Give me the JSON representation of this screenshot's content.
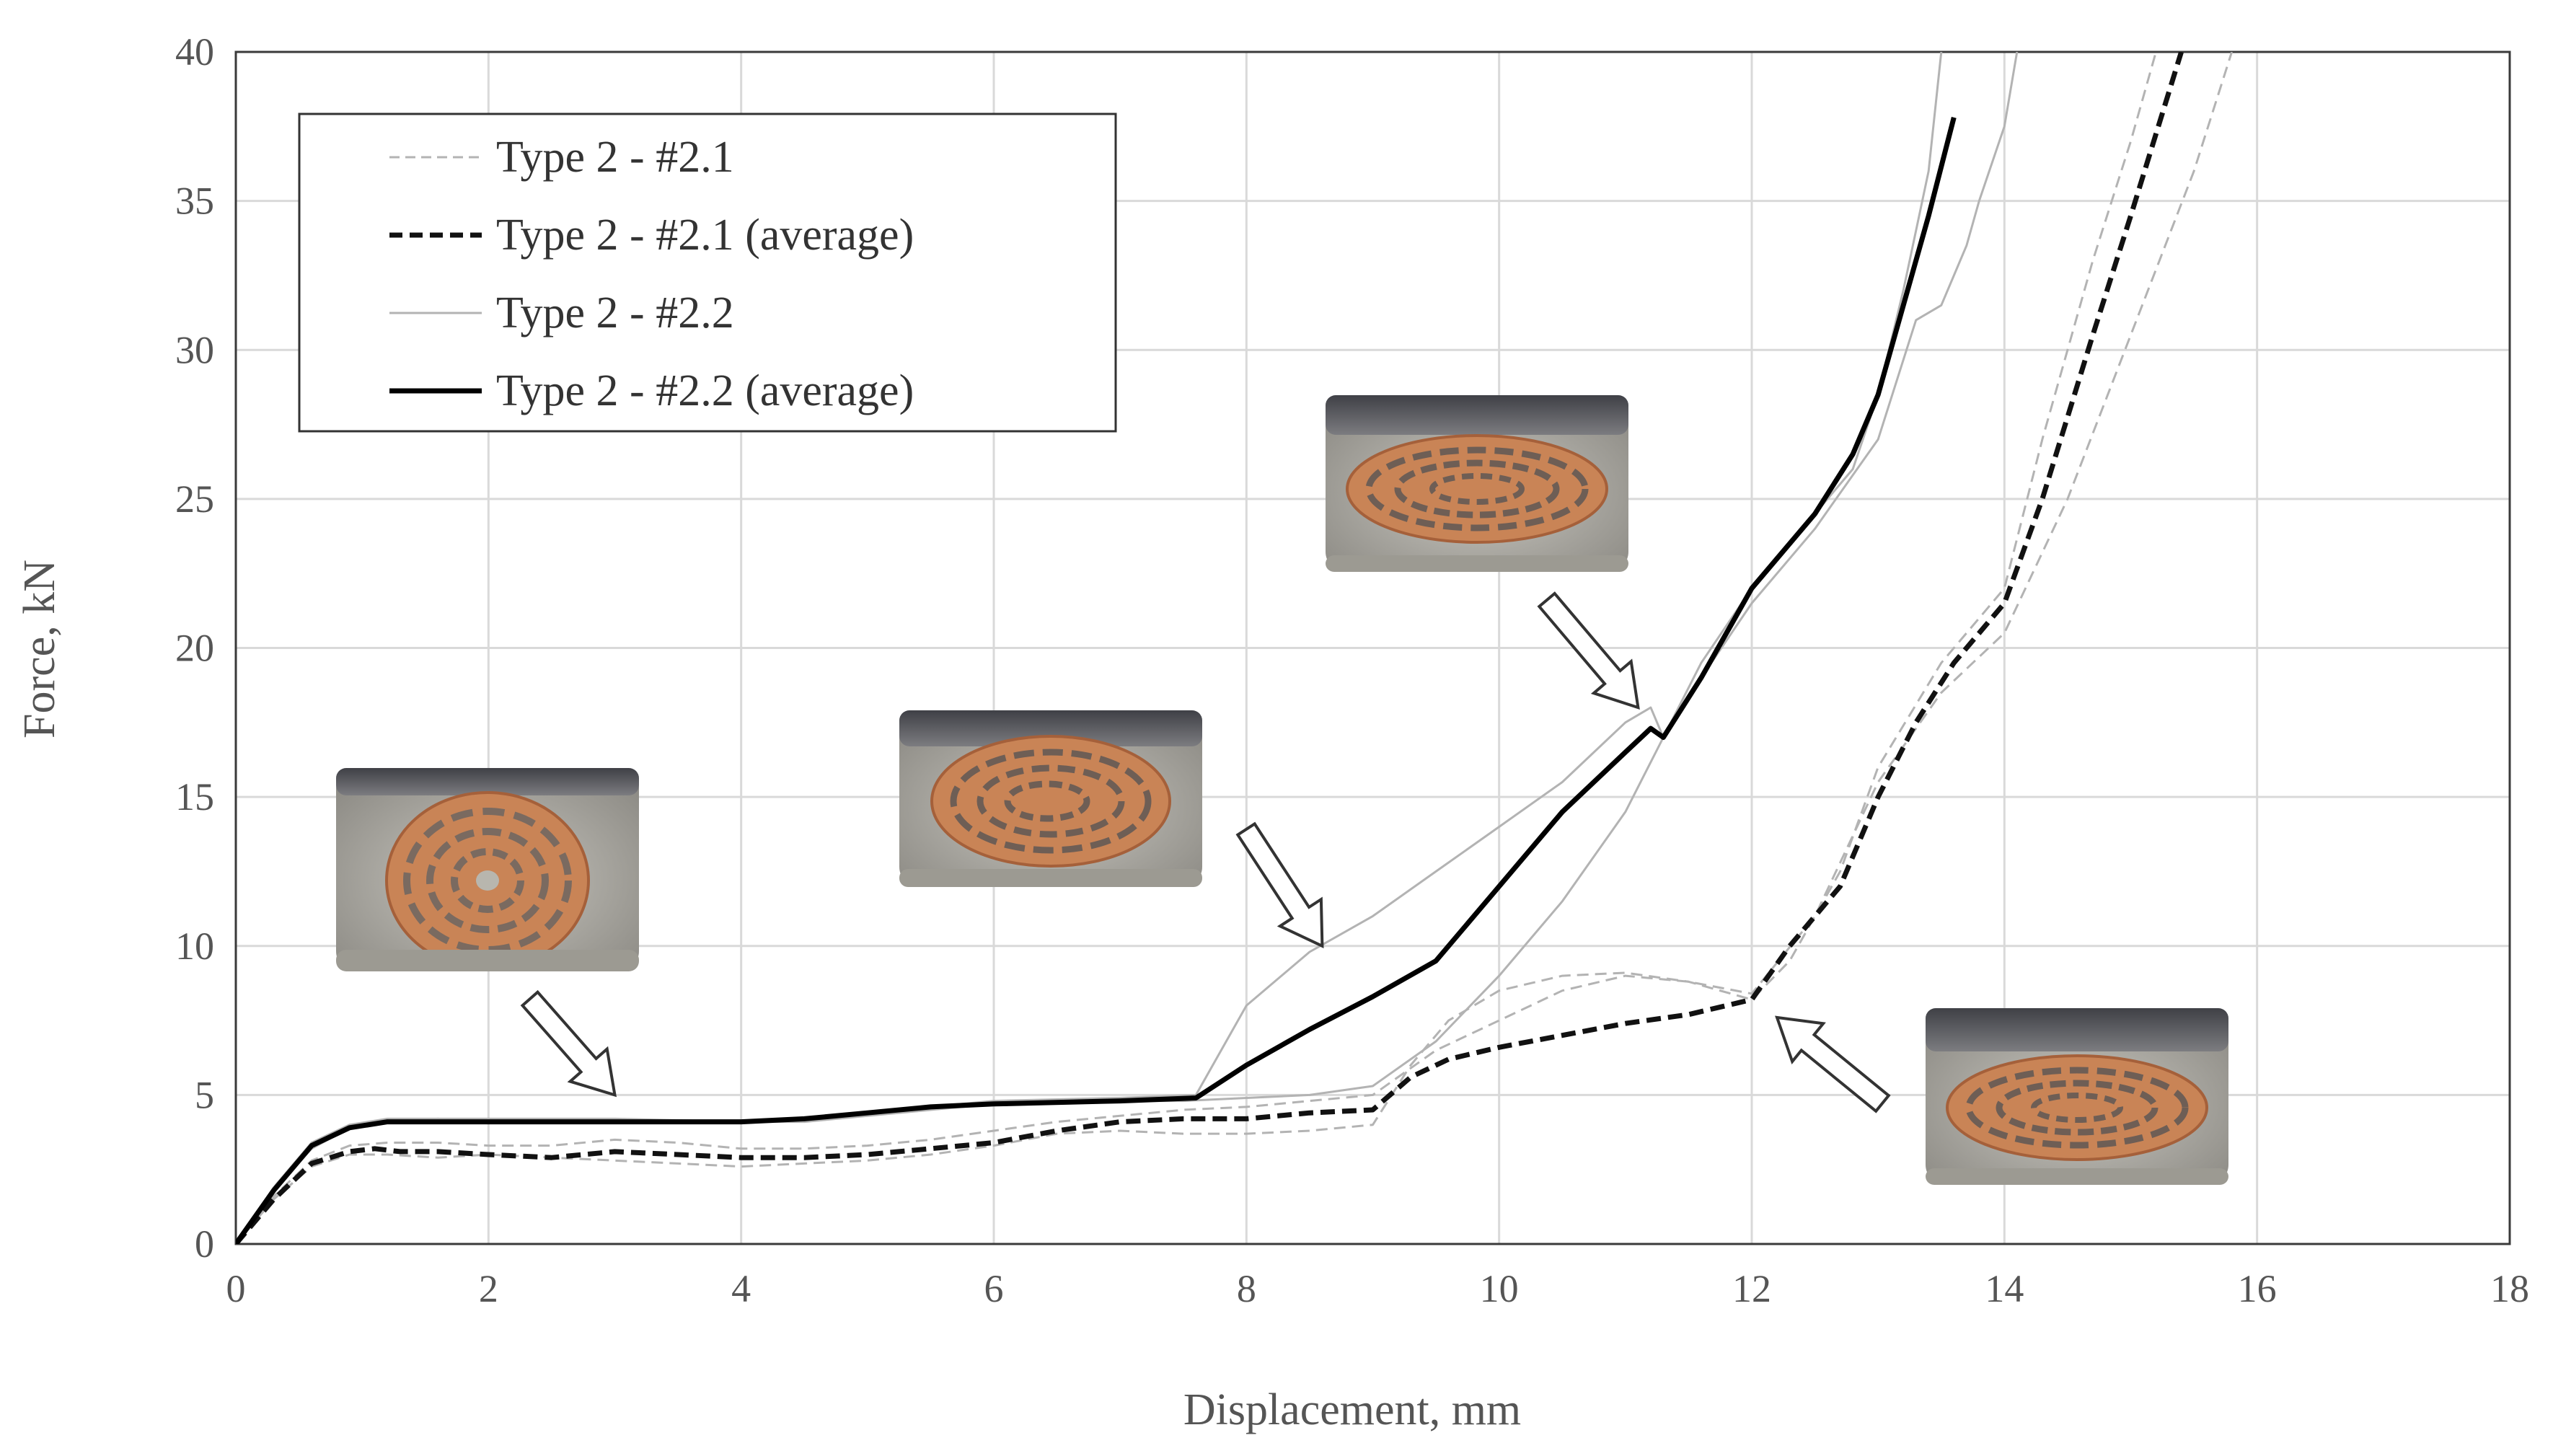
{
  "chart_data": {
    "type": "line",
    "title": "",
    "xlabel": "Displacement, mm",
    "ylabel": "Force, kN",
    "xlim": [
      0,
      18
    ],
    "ylim": [
      0,
      40
    ],
    "xticks": [
      0,
      2,
      4,
      6,
      8,
      10,
      12,
      14,
      16,
      18
    ],
    "yticks": [
      0,
      5,
      10,
      15,
      20,
      25,
      30,
      35,
      40
    ],
    "grid": true,
    "legend_position": "top-left",
    "series": [
      {
        "name": "Type 2 - #2.1",
        "style": "thin-dashed",
        "color": "#b3b3b3",
        "runs": [
          {
            "x": [
              0,
              0.3,
              0.6,
              0.9,
              1.2,
              1.6,
              2.0,
              2.5,
              3.0,
              3.5,
              4.0,
              4.5,
              5.0,
              5.5,
              6.0,
              6.5,
              7.0,
              7.5,
              8.0,
              8.5,
              9.0,
              9.3,
              9.6,
              10.0,
              10.5,
              11.0,
              11.5,
              12.0,
              12.3,
              12.7,
              13.0,
              13.5,
              14.0,
              14.3,
              14.7,
              15.0,
              15.2
            ],
            "y": [
              0,
              1.5,
              2.6,
              3.0,
              3.0,
              2.9,
              3.0,
              2.9,
              2.8,
              2.7,
              2.6,
              2.7,
              2.8,
              3.0,
              3.3,
              3.7,
              3.8,
              3.7,
              3.7,
              3.8,
              4.0,
              6.0,
              7.5,
              8.5,
              9.0,
              9.1,
              8.8,
              8.2,
              9.5,
              12.5,
              16.0,
              19.5,
              22.0,
              27.0,
              33.0,
              37.0,
              40.0
            ]
          },
          {
            "x": [
              0,
              0.3,
              0.6,
              0.9,
              1.2,
              1.6,
              2.0,
              2.5,
              3.0,
              3.5,
              4.0,
              4.5,
              5.0,
              5.5,
              6.0,
              6.5,
              7.0,
              7.5,
              8.0,
              8.5,
              9.0,
              9.5,
              10.0,
              10.5,
              11.0,
              11.5,
              12.0,
              12.5,
              13.0,
              13.5,
              14.0,
              14.5,
              15.0,
              15.5,
              15.8
            ],
            "y": [
              0,
              1.6,
              2.8,
              3.3,
              3.4,
              3.4,
              3.3,
              3.3,
              3.5,
              3.4,
              3.2,
              3.2,
              3.3,
              3.5,
              3.8,
              4.1,
              4.3,
              4.5,
              4.6,
              4.8,
              5.0,
              6.5,
              7.5,
              8.5,
              9.0,
              8.8,
              8.4,
              11.0,
              15.5,
              18.5,
              20.5,
              25.0,
              30.5,
              36.0,
              40.0
            ]
          }
        ]
      },
      {
        "name": "Type 2 - #2.1 (average)",
        "style": "thick-dashed",
        "color": "#111111",
        "runs": [
          {
            "x": [
              0,
              0.3,
              0.6,
              0.9,
              1.1,
              1.3,
              1.6,
              2.0,
              2.5,
              3.0,
              3.5,
              4.0,
              4.5,
              5.0,
              5.5,
              6.0,
              6.5,
              7.0,
              7.5,
              8.0,
              8.5,
              9.0,
              9.3,
              9.6,
              10.0,
              10.5,
              11.0,
              11.5,
              12.0,
              12.3,
              12.7,
              13.0,
              13.3,
              13.6,
              14.0,
              14.3,
              14.7,
              15.0,
              15.4
            ],
            "y": [
              0,
              1.5,
              2.7,
              3.1,
              3.2,
              3.1,
              3.1,
              3.0,
              2.9,
              3.1,
              3.0,
              2.9,
              2.9,
              3.0,
              3.2,
              3.4,
              3.8,
              4.1,
              4.2,
              4.2,
              4.4,
              4.5,
              5.6,
              6.2,
              6.6,
              7.0,
              7.4,
              7.7,
              8.2,
              10.0,
              12.0,
              15.0,
              17.5,
              19.5,
              21.5,
              25.0,
              30.5,
              34.5,
              40.0
            ]
          }
        ]
      },
      {
        "name": "Type 2 - #2.2",
        "style": "thin-solid",
        "color": "#b3b3b3",
        "runs": [
          {
            "x": [
              0,
              0.3,
              0.6,
              0.9,
              1.2,
              1.6,
              2.0,
              3.0,
              4.0,
              4.5,
              5.0,
              5.5,
              6.0,
              7.0,
              7.6,
              7.8,
              8.0,
              8.5,
              9.0,
              9.5,
              10.0,
              10.5,
              11.0,
              11.2,
              11.3,
              11.6,
              12.0,
              12.5,
              13.0,
              13.3,
              13.5,
              13.7,
              13.8,
              14.0,
              14.1
            ],
            "y": [
              0,
              1.8,
              3.2,
              3.9,
              4.1,
              4.2,
              4.1,
              4.1,
              4.1,
              4.2,
              4.4,
              4.6,
              4.8,
              4.9,
              5.0,
              6.5,
              8.0,
              9.8,
              11.0,
              12.5,
              14.0,
              15.5,
              17.5,
              18.0,
              17.0,
              19.0,
              21.5,
              24.0,
              27.0,
              31.0,
              31.5,
              33.5,
              35.0,
              37.5,
              40.0
            ]
          },
          {
            "x": [
              0,
              0.3,
              0.6,
              0.9,
              1.2,
              1.6,
              2.0,
              3.0,
              4.0,
              4.5,
              5.0,
              5.5,
              6.0,
              7.0,
              7.5,
              8.0,
              8.5,
              9.0,
              9.5,
              10.0,
              10.5,
              11.0,
              11.3,
              11.6,
              12.0,
              12.5,
              12.8,
              13.0,
              13.2,
              13.4,
              13.5
            ],
            "y": [
              0,
              1.9,
              3.4,
              4.0,
              4.2,
              4.2,
              4.2,
              4.2,
              4.1,
              4.1,
              4.3,
              4.5,
              4.7,
              4.8,
              4.8,
              4.9,
              5.0,
              5.3,
              6.8,
              9.0,
              11.5,
              14.5,
              17.0,
              19.5,
              22.0,
              24.5,
              26.0,
              28.5,
              32.0,
              36.0,
              40.0
            ]
          }
        ]
      },
      {
        "name": "Type 2 - #2.2 (average)",
        "style": "thick-solid",
        "color": "#000000",
        "runs": [
          {
            "x": [
              0,
              0.3,
              0.6,
              0.9,
              1.2,
              1.6,
              2.0,
              3.0,
              4.0,
              4.5,
              5.0,
              5.5,
              6.0,
              7.0,
              7.6,
              8.0,
              8.5,
              9.0,
              9.5,
              10.0,
              10.5,
              11.0,
              11.2,
              11.3,
              11.6,
              12.0,
              12.5,
              12.8,
              13.0,
              13.2,
              13.4,
              13.6
            ],
            "y": [
              0,
              1.8,
              3.3,
              3.9,
              4.1,
              4.1,
              4.1,
              4.1,
              4.1,
              4.2,
              4.4,
              4.6,
              4.7,
              4.8,
              4.9,
              6.0,
              7.2,
              8.3,
              9.5,
              12.0,
              14.5,
              16.5,
              17.3,
              17.0,
              19.0,
              22.0,
              24.5,
              26.5,
              28.5,
              31.5,
              34.5,
              37.8
            ]
          }
        ]
      }
    ],
    "annotations": [
      {
        "name": "inset-stage-1",
        "description": "initial undeformed lattice photo",
        "arrow_to": [
          3.0,
          5.0
        ]
      },
      {
        "name": "inset-stage-2",
        "description": "partly compressed lattice photo",
        "arrow_to": [
          8.6,
          10.0
        ]
      },
      {
        "name": "inset-stage-3",
        "description": "heavily compressed lattice photo",
        "arrow_to": [
          11.1,
          18.0
        ]
      },
      {
        "name": "inset-stage-4",
        "description": "heavily compressed lattice photo",
        "arrow_to": [
          12.2,
          7.6
        ]
      }
    ]
  }
}
